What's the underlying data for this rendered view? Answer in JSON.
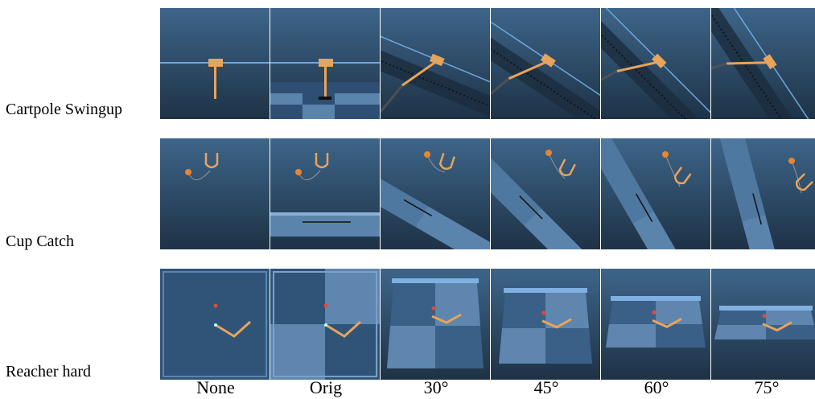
{
  "rows": [
    {
      "label": "Cartpole Swingup",
      "task": "cartpole"
    },
    {
      "label": "Cup Catch",
      "task": "cup"
    },
    {
      "label": "Reacher hard",
      "task": "reacher"
    }
  ],
  "columns": [
    "None",
    "Orig",
    "30°",
    "45°",
    "60°",
    "75°"
  ],
  "colors": {
    "sky_top": "#3d6589",
    "sky_bottom": "#1e3246",
    "floor_light": "#5b84ad",
    "floor_dark": "#2e4f73",
    "rail": "#6fa6e0",
    "body_orange": "#e8a35c",
    "ball_orange": "#e8852e",
    "target_red": "#e04a3a"
  }
}
